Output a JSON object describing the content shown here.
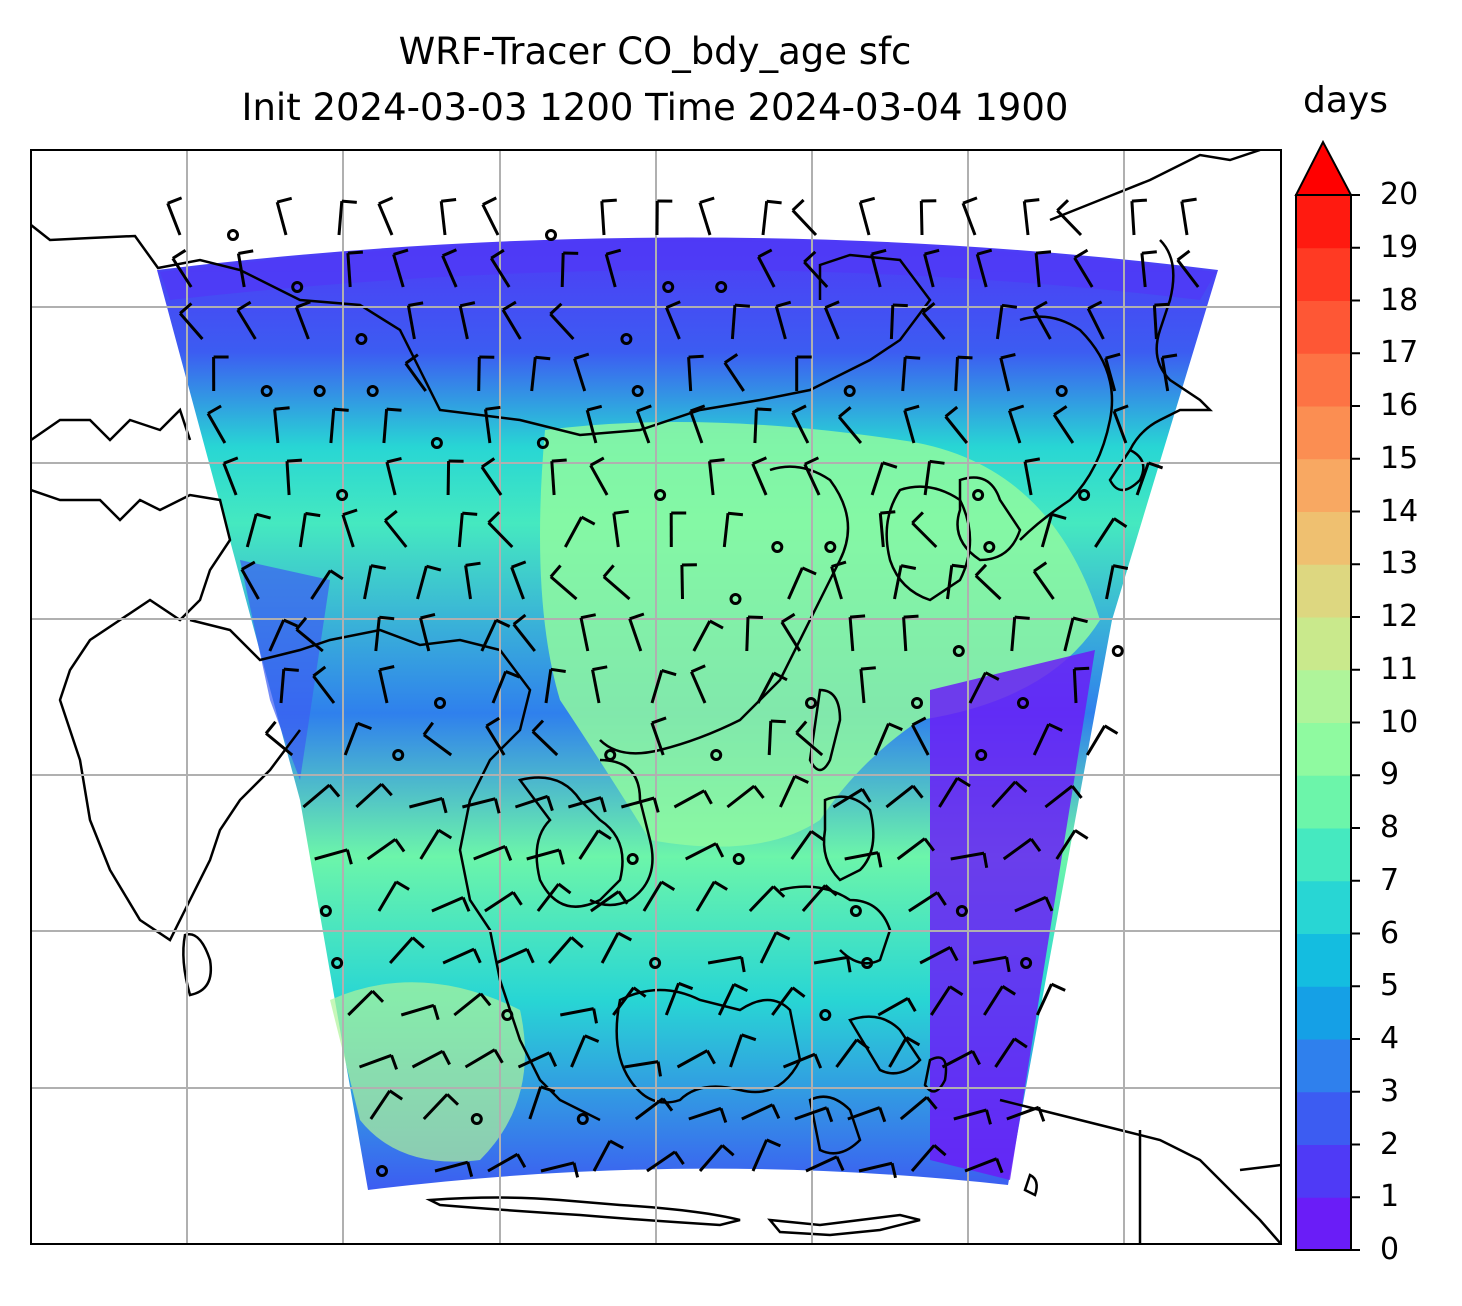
{
  "title": {
    "line1": "WRF-Tracer CO_bdy_age sfc",
    "line2": "Init 2024-03-03 1200 Time 2024-03-04 1900"
  },
  "colorbar": {
    "unit": "days",
    "ticks": [
      "0",
      "1",
      "2",
      "3",
      "4",
      "5",
      "6",
      "7",
      "8",
      "9",
      "10",
      "11",
      "12",
      "13",
      "14",
      "15",
      "16",
      "17",
      "18",
      "19",
      "20"
    ],
    "colors": [
      "#6a1df7",
      "#4f3af6",
      "#3c5cf2",
      "#2f80ed",
      "#15a0e6",
      "#14bde0",
      "#28d6d4",
      "#45e9c0",
      "#6cf5aa",
      "#8ffaa0",
      "#aff49a",
      "#c9e98c",
      "#ddd780",
      "#efc070",
      "#f8a862",
      "#fb8e52",
      "#fd7344",
      "#fe5735",
      "#ff3a23",
      "#ff1a10"
    ],
    "extend": "max",
    "extend_color": "#ff0000"
  },
  "map": {
    "projection": "Mercator",
    "gridlines": true,
    "field": "CO_bdy_age",
    "overlay": "wind barbs"
  }
}
